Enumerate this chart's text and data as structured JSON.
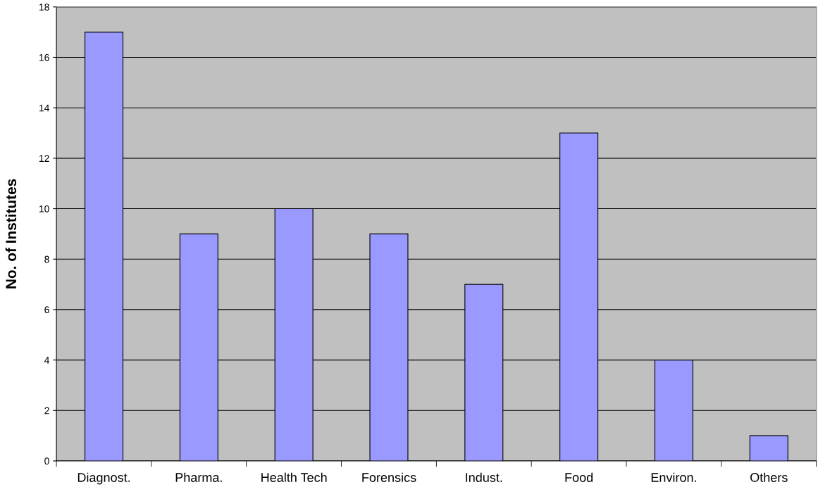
{
  "chart_data": {
    "type": "bar",
    "ylabel": "No. of Institutes",
    "categories": [
      "Diagnost.",
      "Pharma.",
      "Health Tech",
      "Forensics",
      "Indust.",
      "Food",
      "Environ.",
      "Others"
    ],
    "values": [
      17,
      9,
      10,
      9,
      7,
      13,
      4,
      1
    ],
    "color": "#9999ff",
    "ylim": [
      0,
      18
    ],
    "yticks": [
      0,
      2,
      4,
      6,
      8,
      10,
      12,
      14,
      16,
      18
    ],
    "grid": "y"
  }
}
